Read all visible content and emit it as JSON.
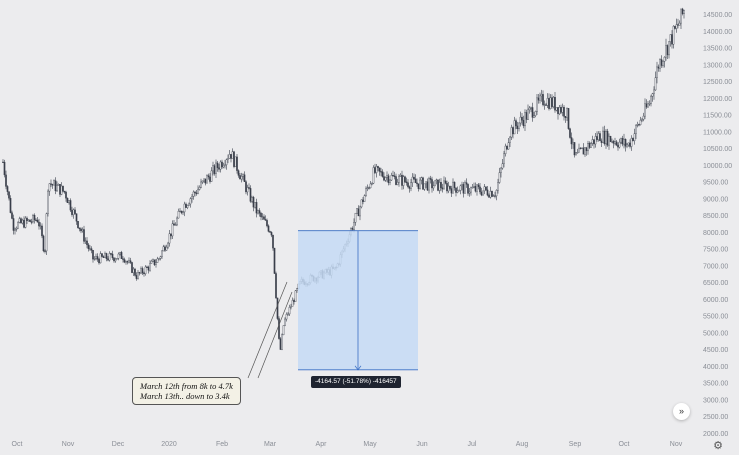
{
  "chart_data": {
    "type": "candlestick",
    "title": "",
    "xlabel": "",
    "ylabel": "",
    "ylim": [
      2000,
      14700
    ],
    "y_ticks": [
      "14500.00",
      "14000.00",
      "13500.00",
      "13000.00",
      "12500.00",
      "12000.00",
      "11500.00",
      "11000.00",
      "10500.00",
      "10000.00",
      "9500.00",
      "9000.00",
      "8500.00",
      "8000.00",
      "7500.00",
      "7000.00",
      "6500.00",
      "6000.00",
      "5500.00",
      "5000.00",
      "4500.00",
      "4000.00",
      "3500.00",
      "3000.00",
      "2500.00",
      "2000.00"
    ],
    "x_ticks": [
      "Oct",
      "Nov",
      "Dec",
      "2020",
      "Feb",
      "Mar",
      "Apr",
      "May",
      "Jun",
      "Jul",
      "Aug",
      "Sep",
      "Oct",
      "Nov"
    ],
    "price_path_approx": [
      {
        "date": "2019-09-29",
        "close": 10100
      },
      {
        "date": "2019-10-05",
        "close": 8200
      },
      {
        "date": "2019-10-20",
        "close": 8400
      },
      {
        "date": "2019-10-24",
        "close": 7400
      },
      {
        "date": "2019-10-26",
        "close": 9500
      },
      {
        "date": "2019-11-05",
        "close": 9200
      },
      {
        "date": "2019-11-22",
        "close": 7200
      },
      {
        "date": "2019-12-10",
        "close": 7300
      },
      {
        "date": "2019-12-18",
        "close": 6700
      },
      {
        "date": "2019-12-31",
        "close": 7200
      },
      {
        "date": "2020-01-15",
        "close": 8800
      },
      {
        "date": "2020-02-12",
        "close": 10400
      },
      {
        "date": "2020-02-28",
        "close": 8600
      },
      {
        "date": "2020-03-08",
        "close": 8000
      },
      {
        "date": "2020-03-12",
        "close": 4800
      },
      {
        "date": "2020-03-13",
        "close": 4500
      },
      {
        "date": "2020-03-15",
        "close": 5300
      },
      {
        "date": "2020-03-25",
        "close": 6500
      },
      {
        "date": "2020-04-15",
        "close": 6900
      },
      {
        "date": "2020-04-29",
        "close": 8700
      },
      {
        "date": "2020-05-08",
        "close": 9800
      },
      {
        "date": "2020-05-28",
        "close": 9500
      },
      {
        "date": "2020-06-15",
        "close": 9400
      },
      {
        "date": "2020-07-20",
        "close": 9200
      },
      {
        "date": "2020-07-28",
        "close": 11000
      },
      {
        "date": "2020-08-18",
        "close": 12000
      },
      {
        "date": "2020-08-31",
        "close": 11600
      },
      {
        "date": "2020-09-05",
        "close": 10200
      },
      {
        "date": "2020-09-20",
        "close": 10900
      },
      {
        "date": "2020-10-07",
        "close": 10600
      },
      {
        "date": "2020-10-20",
        "close": 11900
      },
      {
        "date": "2020-10-25",
        "close": 13000
      },
      {
        "date": "2020-11-07",
        "close": 14300
      },
      {
        "date": "2020-11-10",
        "close": 14700
      }
    ],
    "measure": {
      "from_price": 8050,
      "to_price": 3900,
      "label": "-4164.57 (-51.78%) -416457"
    },
    "annotation": {
      "line1": "March 12th from  8k to 4.7k",
      "line2": "March 13th.. down to 3.4k"
    }
  },
  "colors": {
    "background": "#ececee",
    "candle_up": "#ffffff",
    "candle_down": "#3a3f4a",
    "wick": "#3a3f4a",
    "measure_fill": "#c6dbf4",
    "measure_line": "#3a6fc4",
    "axis_text": "#8a8e96"
  },
  "icons": {
    "scroll_right": "double-chevron-right-icon",
    "settings": "gear-icon"
  }
}
